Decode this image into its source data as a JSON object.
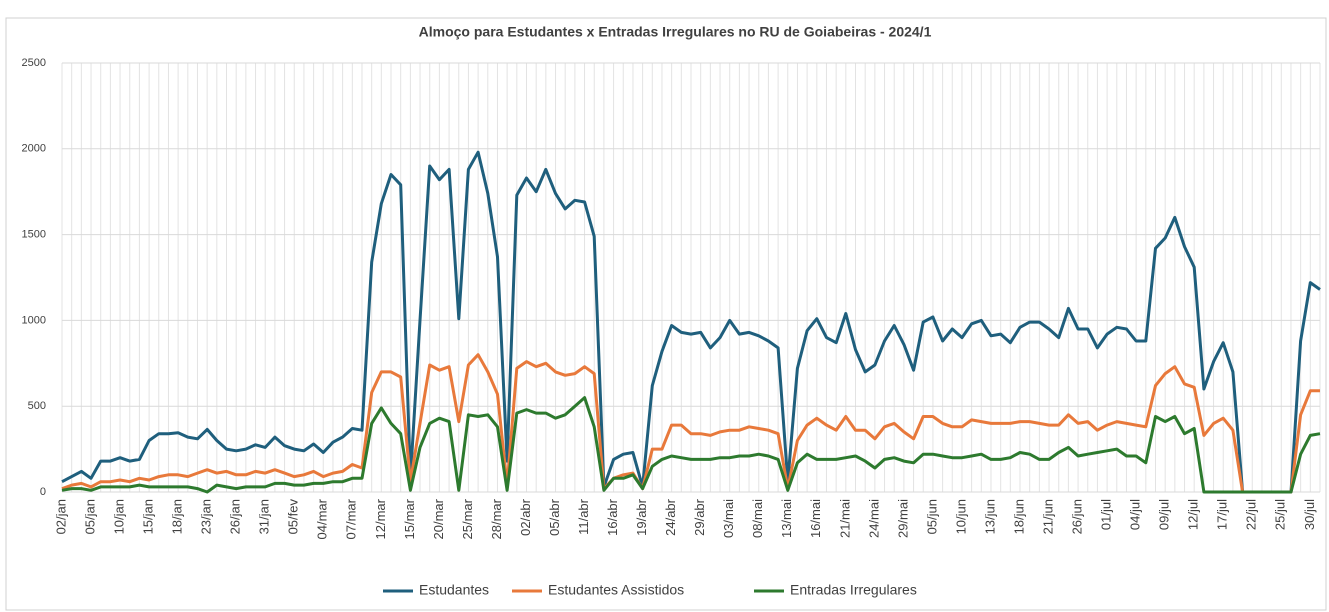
{
  "chart_data": {
    "type": "line",
    "title": "Almoço para Estudantes x Entradas Irregulares no RU de Goiabeiras - 2024/1",
    "categories": [
      "02/jan",
      null,
      null,
      "05/jan",
      null,
      null,
      "10/jan",
      null,
      null,
      "15/jan",
      null,
      null,
      "18/jan",
      null,
      null,
      "23/jan",
      null,
      null,
      "26/jan",
      null,
      null,
      "31/jan",
      null,
      null,
      "05/fev",
      null,
      null,
      "04/mar",
      null,
      null,
      "07/mar",
      null,
      null,
      "12/mar",
      null,
      null,
      "15/mar",
      null,
      null,
      "20/mar",
      null,
      null,
      "25/mar",
      null,
      null,
      "28/mar",
      null,
      null,
      "02/abr",
      null,
      null,
      "05/abr",
      null,
      null,
      "11/abr",
      null,
      null,
      "16/abr",
      null,
      null,
      "19/abr",
      null,
      null,
      "24/abr",
      null,
      null,
      "29/abr",
      null,
      null,
      "03/mai",
      null,
      null,
      "08/mai",
      null,
      null,
      "13/mai",
      null,
      null,
      "16/mai",
      null,
      null,
      "21/mai",
      null,
      null,
      "24/mai",
      null,
      null,
      "29/mai",
      null,
      null,
      "05/jun",
      null,
      null,
      "10/jun",
      null,
      null,
      "13/jun",
      null,
      null,
      "18/jun",
      null,
      null,
      "21/jun",
      null,
      null,
      "26/jun",
      null,
      null,
      "01/jul",
      null,
      null,
      "04/jul",
      null,
      null,
      "09/jul",
      null,
      null,
      "12/jul",
      null,
      null,
      "17/jul",
      null,
      null,
      "22/jul",
      null,
      null,
      "25/jul",
      null,
      null,
      "30/jul",
      null
    ],
    "series": [
      {
        "name": "Estudantes",
        "color": "#1f5f7d",
        "values": [
          60,
          90,
          120,
          80,
          180,
          180,
          200,
          180,
          190,
          300,
          340,
          340,
          345,
          320,
          310,
          365,
          300,
          250,
          240,
          250,
          275,
          260,
          320,
          270,
          250,
          240,
          280,
          230,
          290,
          320,
          370,
          360,
          1340,
          1680,
          1850,
          1790,
          80,
          1000,
          1900,
          1820,
          1880,
          1010,
          1880,
          1980,
          1740,
          1370,
          180,
          1730,
          1830,
          1750,
          1880,
          1740,
          1650,
          1700,
          1690,
          1490,
          30,
          190,
          220,
          230,
          30,
          620,
          820,
          970,
          930,
          920,
          930,
          840,
          900,
          1000,
          920,
          930,
          910,
          880,
          840,
          60,
          720,
          940,
          1010,
          900,
          870,
          1040,
          830,
          700,
          740,
          880,
          970,
          860,
          710,
          990,
          1020,
          880,
          950,
          900,
          980,
          1000,
          910,
          920,
          870,
          960,
          990,
          990,
          950,
          900,
          1070,
          950,
          950,
          840,
          920,
          960,
          950,
          880,
          880,
          1420,
          1480,
          1600,
          1430,
          1310,
          600,
          760,
          870,
          700,
          0,
          0,
          0,
          0,
          0,
          0,
          880,
          1220,
          1180
        ]
      },
      {
        "name": "Estudantes Assistidos",
        "color": "#e8793b",
        "values": [
          20,
          40,
          50,
          30,
          60,
          60,
          70,
          60,
          80,
          70,
          90,
          100,
          100,
          90,
          110,
          130,
          110,
          120,
          100,
          100,
          120,
          110,
          130,
          110,
          90,
          100,
          120,
          90,
          110,
          120,
          160,
          140,
          580,
          700,
          700,
          670,
          60,
          400,
          740,
          710,
          730,
          410,
          740,
          800,
          700,
          570,
          40,
          720,
          760,
          730,
          750,
          700,
          680,
          690,
          730,
          690,
          20,
          80,
          100,
          110,
          20,
          250,
          250,
          390,
          390,
          340,
          340,
          330,
          350,
          360,
          360,
          380,
          370,
          360,
          340,
          20,
          300,
          390,
          430,
          390,
          360,
          440,
          360,
          360,
          310,
          380,
          400,
          350,
          310,
          440,
          440,
          400,
          380,
          380,
          420,
          410,
          400,
          400,
          400,
          410,
          410,
          400,
          390,
          390,
          450,
          400,
          410,
          360,
          390,
          410,
          400,
          390,
          380,
          620,
          690,
          730,
          630,
          610,
          330,
          400,
          430,
          360,
          0,
          0,
          0,
          0,
          0,
          0,
          450,
          590,
          590
        ]
      },
      {
        "name": "Entradas Irregulares",
        "color": "#2d7a2e",
        "values": [
          10,
          20,
          20,
          10,
          30,
          30,
          30,
          30,
          40,
          30,
          30,
          30,
          30,
          30,
          20,
          0,
          40,
          30,
          20,
          30,
          30,
          30,
          50,
          50,
          40,
          40,
          50,
          50,
          60,
          60,
          80,
          80,
          400,
          490,
          400,
          340,
          10,
          260,
          400,
          430,
          410,
          10,
          450,
          440,
          450,
          380,
          10,
          460,
          480,
          460,
          460,
          430,
          450,
          500,
          550,
          380,
          10,
          80,
          80,
          100,
          20,
          150,
          190,
          210,
          200,
          190,
          190,
          190,
          200,
          200,
          210,
          210,
          220,
          210,
          190,
          10,
          170,
          220,
          190,
          190,
          190,
          200,
          210,
          180,
          140,
          190,
          200,
          180,
          170,
          220,
          220,
          210,
          200,
          200,
          210,
          220,
          190,
          190,
          200,
          230,
          220,
          190,
          190,
          230,
          260,
          210,
          220,
          230,
          240,
          250,
          210,
          210,
          170,
          440,
          410,
          440,
          340,
          370,
          0,
          0,
          0,
          0,
          0,
          0,
          0,
          0,
          0,
          0,
          220,
          330,
          340
        ]
      }
    ],
    "ylim": [
      0,
      2500
    ],
    "yticks": [
      0,
      500,
      1000,
      1500,
      2000,
      2500
    ],
    "grid": true,
    "legend": "bottom"
  }
}
